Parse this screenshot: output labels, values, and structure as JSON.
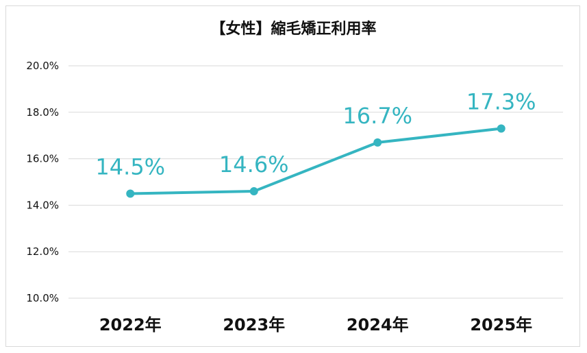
{
  "chart_data": {
    "type": "line",
    "title": "【女性】縮毛矯正利用率",
    "categories": [
      "2022年",
      "2023年",
      "2024年",
      "2025年"
    ],
    "series": [
      {
        "values": [
          14.5,
          14.6,
          16.7,
          17.3
        ],
        "color": "#35b5c1"
      }
    ],
    "data_labels": [
      "14.5%",
      "14.6%",
      "16.7%",
      "17.3%"
    ],
    "y_ticks": [
      "10.0%",
      "12.0%",
      "14.0%",
      "16.0%",
      "18.0%",
      "20.0%"
    ],
    "ylim": [
      10,
      20
    ],
    "grid": true,
    "legend": "none",
    "colors": {
      "line": "#35b5c1",
      "grid": "#d9d9d9"
    }
  }
}
